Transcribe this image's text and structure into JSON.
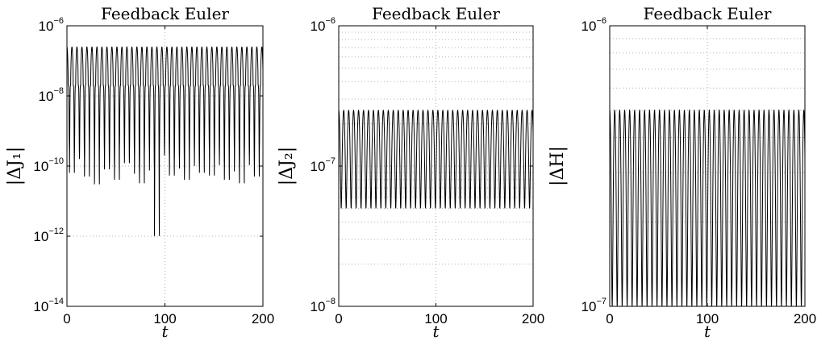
{
  "chart_data": [
    {
      "type": "line",
      "title": "Feedback Euler",
      "xlabel": "t",
      "ylabel": "|ΔJ₁|",
      "yscale": "log",
      "xlim": [
        0,
        200
      ],
      "ylim": [
        1e-14,
        1e-06
      ],
      "xticks": [
        0,
        100,
        200
      ],
      "yticks": [
        {
          "base": "10",
          "exp": "−14",
          "value": 1e-14
        },
        {
          "base": "10",
          "exp": "−12",
          "value": 1e-12
        },
        {
          "base": "10",
          "exp": "−10",
          "value": 1e-10
        },
        {
          "base": "10",
          "exp": "−8",
          "value": 1e-08
        },
        {
          "base": "10",
          "exp": "−6",
          "value": 1e-06
        }
      ],
      "grid": true,
      "series": [
        {
          "period": 5.1,
          "upper": 2.5e-07,
          "mid": 2e-08,
          "dips": [
            3e-10,
            6e-11,
            2e-10,
            1.5e-10,
            5e-11,
            4e-10,
            3e-11,
            2.5e-10,
            8e-11,
            1e-10,
            4e-11,
            3e-10,
            1.2e-10,
            2e-10,
            6e-11,
            3e-11,
            2.5e-10,
            7e-11,
            1e-12,
            3e-10,
            2e-10,
            5e-11,
            1.5e-10,
            8e-11,
            4e-11,
            2.5e-10,
            1e-10,
            6e-11,
            3e-10,
            5e-11,
            2e-10,
            1e-10,
            4e-11,
            3e-10,
            7e-11,
            3e-11,
            2e-10,
            1e-10,
            5e-11,
            2.5e-10
          ]
        }
      ]
    },
    {
      "type": "line",
      "title": "Feedback Euler",
      "xlabel": "t",
      "ylabel": "|ΔJ₂|",
      "yscale": "log",
      "xlim": [
        0,
        200
      ],
      "ylim": [
        1e-08,
        1e-06
      ],
      "xticks": [
        0,
        100,
        200
      ],
      "yticks": [
        {
          "base": "10",
          "exp": "−8",
          "value": 1e-08
        },
        {
          "base": "10",
          "exp": "−7",
          "value": 1e-07
        },
        {
          "base": "10",
          "exp": "−6",
          "value": 1e-06
        }
      ],
      "grid": true,
      "series": [
        {
          "period": 5.1,
          "upper": 2.5e-07,
          "lower": 5e-08
        }
      ]
    },
    {
      "type": "line",
      "title": "Feedback Euler",
      "xlabel": "t",
      "ylabel": "|ΔH|",
      "yscale": "log",
      "xlim": [
        0,
        200
      ],
      "ylim": [
        1e-07,
        1e-06
      ],
      "xticks": [
        0,
        100,
        200
      ],
      "yticks": [
        {
          "base": "10",
          "exp": "−7",
          "value": 1e-07
        },
        {
          "base": "10",
          "exp": "−6",
          "value": 1e-06
        }
      ],
      "grid": true,
      "series": [
        {
          "period": 5.1,
          "upper": 5e-07,
          "lower": 1e-07
        }
      ]
    }
  ]
}
